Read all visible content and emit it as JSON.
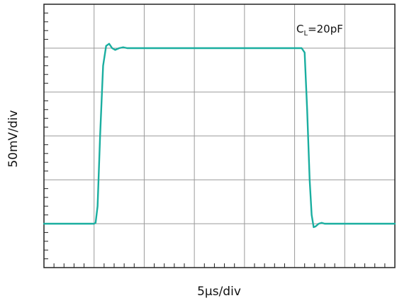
{
  "chart_data": {
    "type": "line",
    "xlabel": "5µs/div",
    "ylabel": "50mV/div",
    "annotation": {
      "main": "C",
      "sub": "L",
      "rest": "=20pF"
    },
    "x_divisions": 7,
    "y_divisions": 6,
    "grid": true,
    "minor_ticks_per_div": 5,
    "xlim": [
      0,
      7
    ],
    "ylim": [
      0,
      6
    ],
    "trace_color": "#1aaea0",
    "grid_color": "#9a9a9a",
    "frame_color": "#222222",
    "series": [
      {
        "points": [
          [
            0.0,
            1.0
          ],
          [
            1.0,
            1.0
          ],
          [
            1.03,
            1.02
          ],
          [
            1.07,
            1.4
          ],
          [
            1.12,
            3.0
          ],
          [
            1.18,
            4.6
          ],
          [
            1.24,
            5.05
          ],
          [
            1.3,
            5.1
          ],
          [
            1.36,
            5.0
          ],
          [
            1.42,
            4.96
          ],
          [
            1.5,
            5.0
          ],
          [
            1.58,
            5.02
          ],
          [
            1.66,
            5.0
          ],
          [
            2.0,
            5.0
          ],
          [
            5.0,
            5.0
          ],
          [
            5.14,
            5.0
          ],
          [
            5.2,
            4.9
          ],
          [
            5.25,
            3.6
          ],
          [
            5.3,
            2.0
          ],
          [
            5.34,
            1.2
          ],
          [
            5.38,
            0.92
          ],
          [
            5.42,
            0.94
          ],
          [
            5.48,
            1.0
          ],
          [
            5.54,
            1.02
          ],
          [
            5.6,
            1.0
          ],
          [
            7.0,
            1.0
          ]
        ]
      }
    ]
  }
}
